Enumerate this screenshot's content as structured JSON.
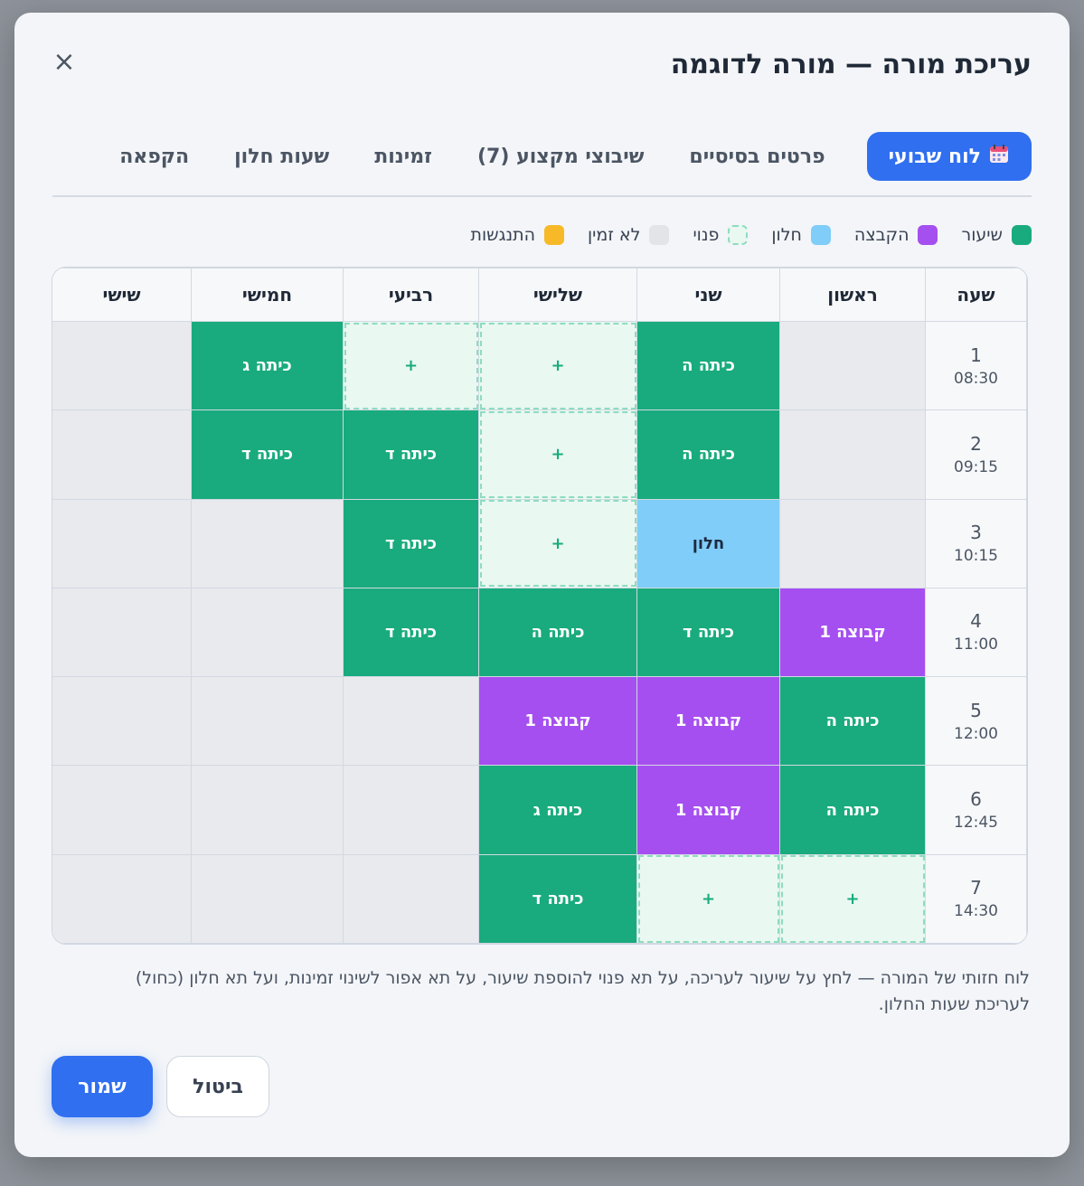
{
  "dialog": {
    "title": "עריכת מורה — מורה לדוגמה",
    "close_label": "×"
  },
  "tabs": [
    {
      "label": "לוח שבועי",
      "icon": "calendar-icon",
      "active": true
    },
    {
      "label": "פרטים בסיסיים",
      "active": false
    },
    {
      "label": "שיבוצי מקצוע (7)",
      "active": false
    },
    {
      "label": "זמינות",
      "active": false
    },
    {
      "label": "שעות חלון",
      "active": false
    },
    {
      "label": "הקפאה",
      "active": false
    }
  ],
  "legend": [
    {
      "label": "שיעור",
      "color": "#19ab7d"
    },
    {
      "label": "הקבצה",
      "color": "#a54ff0"
    },
    {
      "label": "חלון",
      "color": "#7fcdf8"
    },
    {
      "label": "פנוי",
      "color": "#e9f8f1"
    },
    {
      "label": "לא זמין",
      "color": "#e2e4e8"
    },
    {
      "label": "התנגשות",
      "color": "#f7b928"
    }
  ],
  "schedule": {
    "headers": [
      "שעה",
      "ראשון",
      "שני",
      "שלישי",
      "רביעי",
      "חמישי",
      "שישי"
    ],
    "rows": [
      {
        "period": "1",
        "time": "08:30",
        "cells": [
          {
            "type": "empty",
            "text": ""
          },
          {
            "type": "lesson",
            "text": "כיתה ה"
          },
          {
            "type": "free",
            "text": "+"
          },
          {
            "type": "free",
            "text": "+"
          },
          {
            "type": "lesson",
            "text": "כיתה ג"
          },
          {
            "type": "empty",
            "text": ""
          }
        ]
      },
      {
        "period": "2",
        "time": "09:15",
        "cells": [
          {
            "type": "empty",
            "text": ""
          },
          {
            "type": "lesson",
            "text": "כיתה ה"
          },
          {
            "type": "free",
            "text": "+"
          },
          {
            "type": "lesson",
            "text": "כיתה ד"
          },
          {
            "type": "lesson",
            "text": "כיתה ד"
          },
          {
            "type": "empty",
            "text": ""
          }
        ]
      },
      {
        "period": "3",
        "time": "10:15",
        "cells": [
          {
            "type": "empty",
            "text": ""
          },
          {
            "type": "window",
            "text": "חלון"
          },
          {
            "type": "free",
            "text": "+"
          },
          {
            "type": "lesson",
            "text": "כיתה ד"
          },
          {
            "type": "empty",
            "text": ""
          },
          {
            "type": "empty",
            "text": ""
          }
        ]
      },
      {
        "period": "4",
        "time": "11:00",
        "cells": [
          {
            "type": "group",
            "text": "קבוצה 1"
          },
          {
            "type": "lesson",
            "text": "כיתה ד"
          },
          {
            "type": "lesson",
            "text": "כיתה ה"
          },
          {
            "type": "lesson",
            "text": "כיתה ד"
          },
          {
            "type": "empty",
            "text": ""
          },
          {
            "type": "empty",
            "text": ""
          }
        ]
      },
      {
        "period": "5",
        "time": "12:00",
        "cells": [
          {
            "type": "lesson",
            "text": "כיתה ה"
          },
          {
            "type": "group",
            "text": "קבוצה 1"
          },
          {
            "type": "group",
            "text": "קבוצה 1"
          },
          {
            "type": "empty",
            "text": ""
          },
          {
            "type": "empty",
            "text": ""
          },
          {
            "type": "empty",
            "text": ""
          }
        ]
      },
      {
        "period": "6",
        "time": "12:45",
        "cells": [
          {
            "type": "lesson",
            "text": "כיתה ה"
          },
          {
            "type": "group",
            "text": "קבוצה 1"
          },
          {
            "type": "lesson",
            "text": "כיתה ג"
          },
          {
            "type": "empty",
            "text": ""
          },
          {
            "type": "empty",
            "text": ""
          },
          {
            "type": "empty",
            "text": ""
          }
        ]
      },
      {
        "period": "7",
        "time": "14:30",
        "cells": [
          {
            "type": "free",
            "text": "+"
          },
          {
            "type": "free",
            "text": "+"
          },
          {
            "type": "lesson",
            "text": "כיתה ד"
          },
          {
            "type": "empty",
            "text": ""
          },
          {
            "type": "empty",
            "text": ""
          },
          {
            "type": "empty",
            "text": ""
          }
        ]
      }
    ]
  },
  "hint": "לוח חזותי של המורה — לחץ על שיעור לעריכה, על תא פנוי להוספת שיעור, על תא אפור לשינוי זמינות, ועל תא חלון (כחול) לעריכת שעות החלון.",
  "footer": {
    "save_label": "שמור",
    "cancel_label": "ביטול"
  }
}
